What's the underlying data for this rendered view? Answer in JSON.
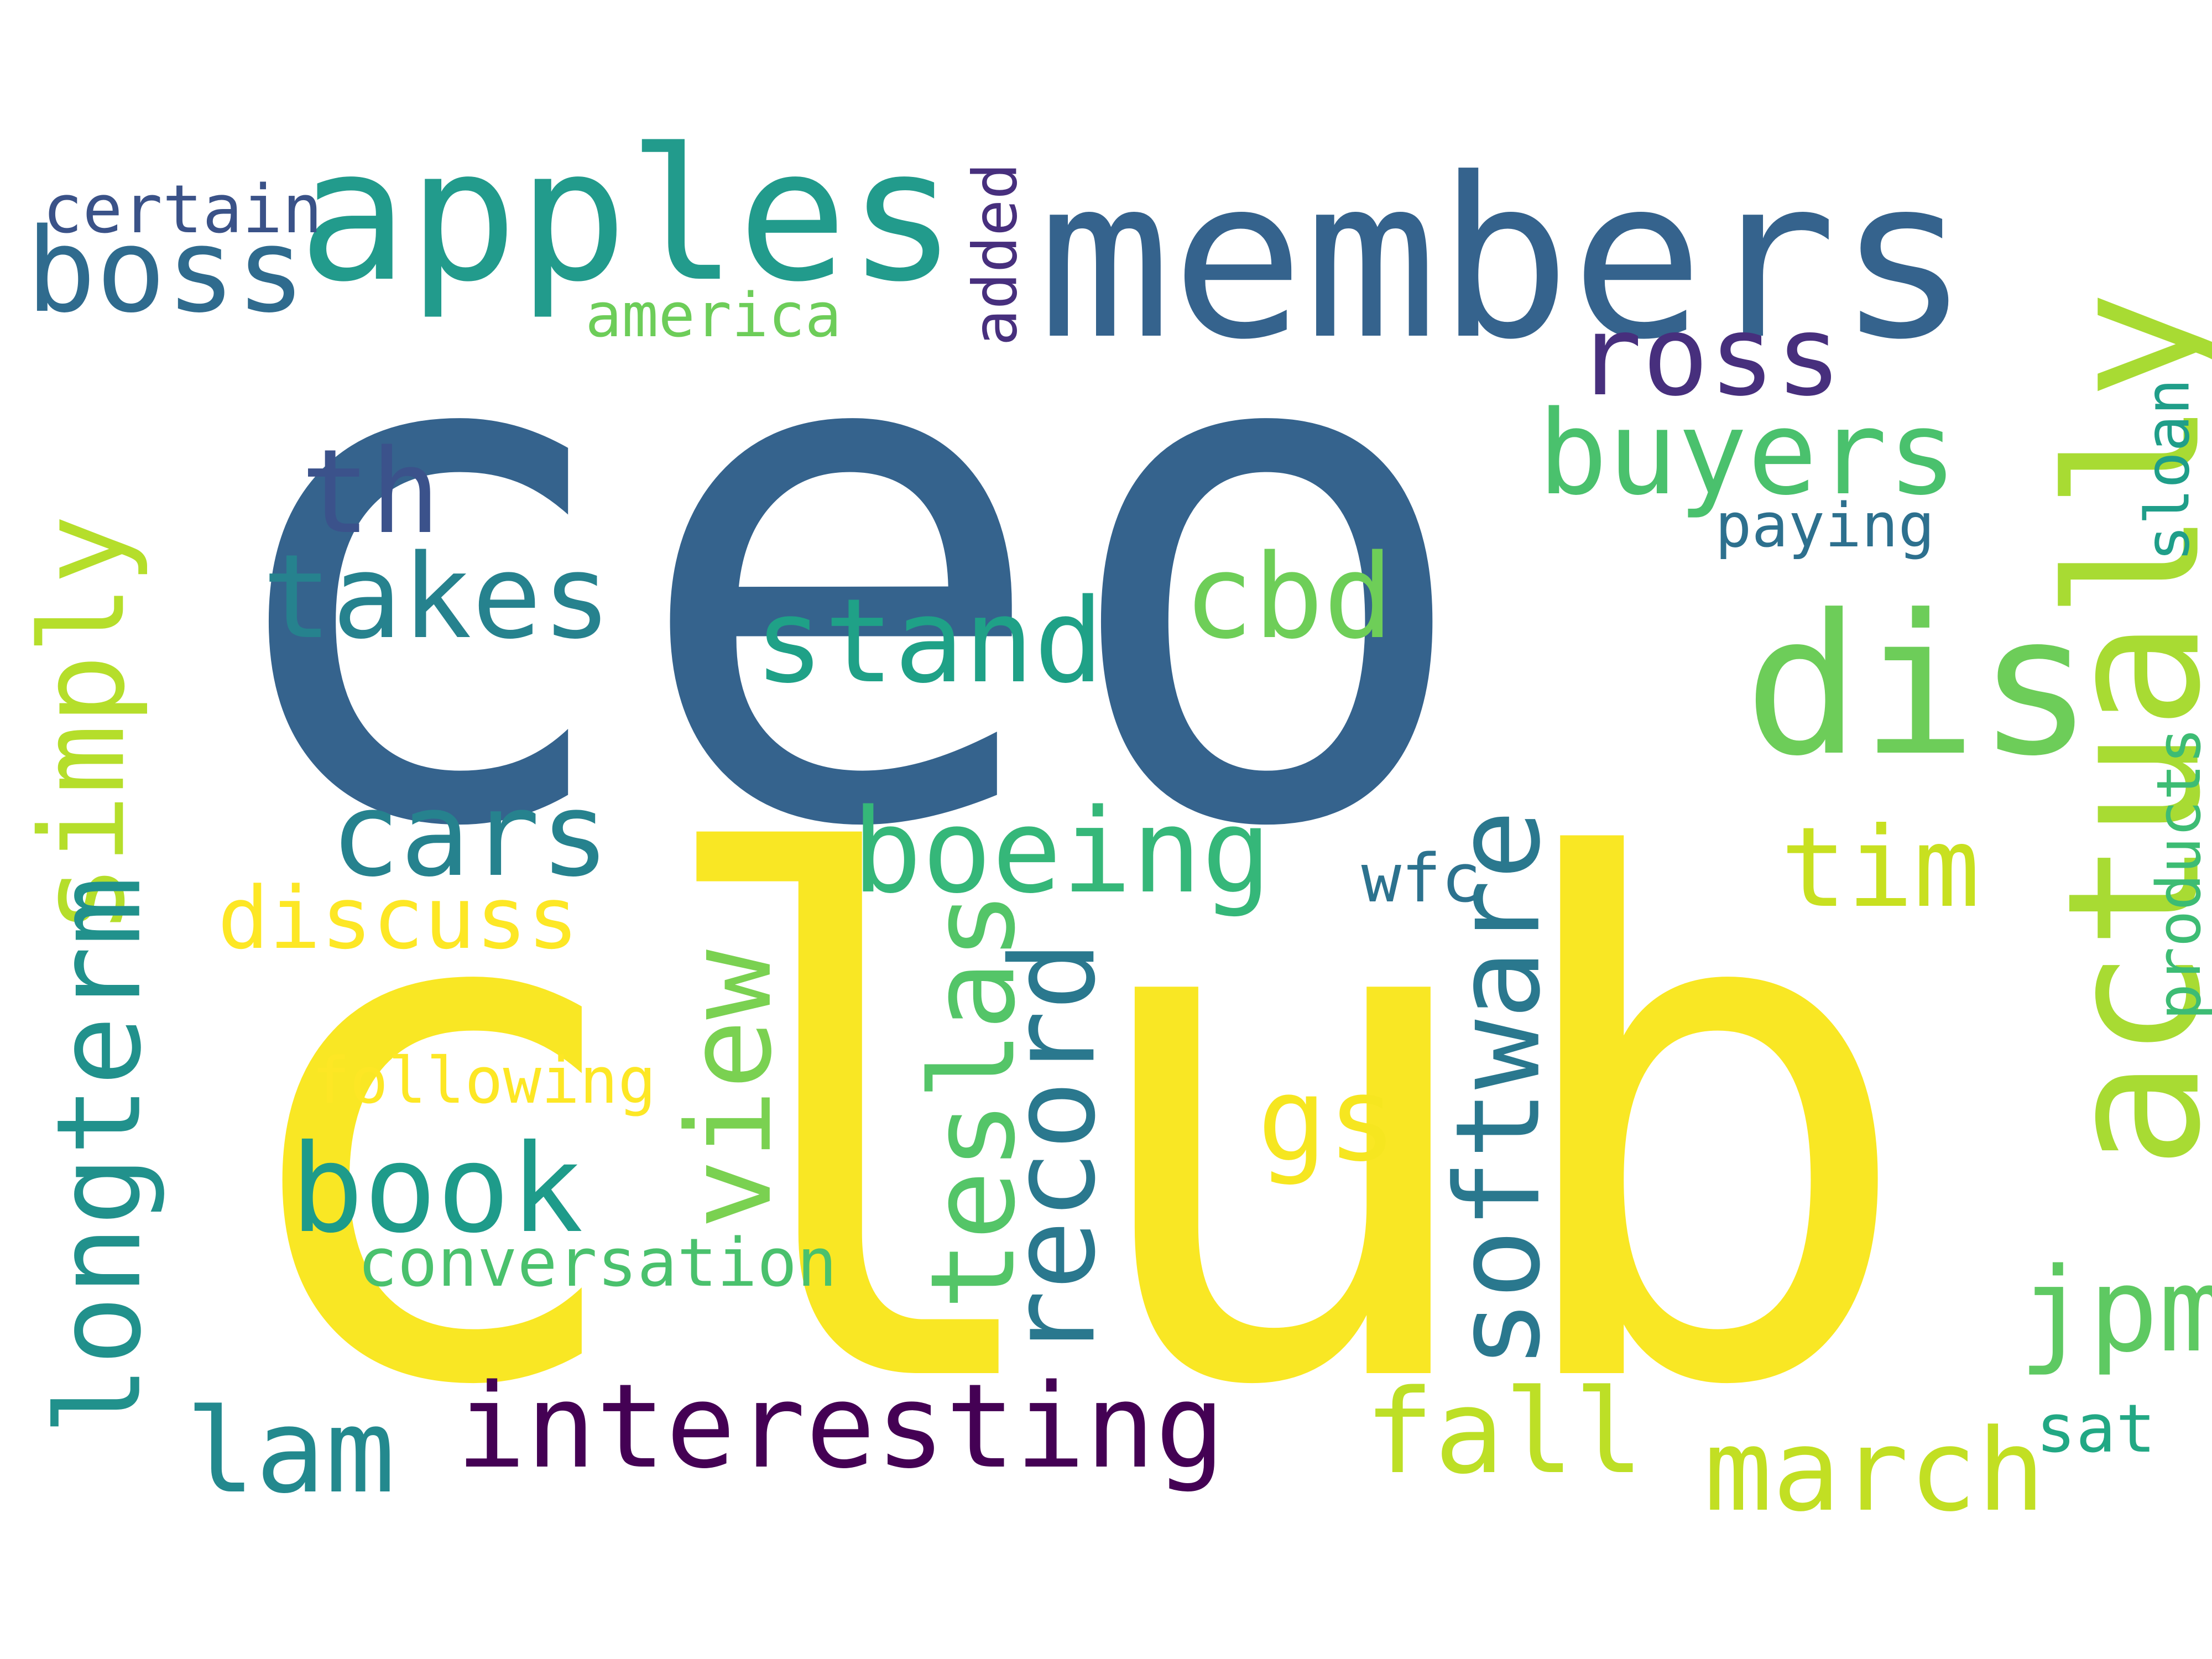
{
  "words": [
    {
      "text": "ceo",
      "color": "#35638d"
    },
    {
      "text": "club",
      "color": "#f9e724"
    },
    {
      "text": "members",
      "color": "#35638d"
    },
    {
      "text": "apples",
      "color": "#229b8c"
    },
    {
      "text": "actually",
      "color": "#a8db33"
    },
    {
      "text": "dis",
      "color": "#6dcd59"
    },
    {
      "text": "boss",
      "color": "#2f6b8e"
    },
    {
      "text": "certain",
      "color": "#3a5288"
    },
    {
      "text": "america",
      "color": "#6dcd59"
    },
    {
      "text": "added",
      "color": "#472f7d"
    },
    {
      "text": "ross",
      "color": "#472f7d"
    },
    {
      "text": "buyers",
      "color": "#4ac16d"
    },
    {
      "text": "sloan",
      "color": "#1f9e89"
    },
    {
      "text": "paying",
      "color": "#2d708e"
    },
    {
      "text": "th",
      "color": "#3b528b"
    },
    {
      "text": "takes",
      "color": "#26828e"
    },
    {
      "text": "cbd",
      "color": "#6ece58"
    },
    {
      "text": "stand",
      "color": "#1fa187"
    },
    {
      "text": "simply",
      "color": "#b5de2b"
    },
    {
      "text": "cars",
      "color": "#26828e"
    },
    {
      "text": "boeing",
      "color": "#35b779"
    },
    {
      "text": "tim",
      "color": "#c8e020"
    },
    {
      "text": "wfc",
      "color": "#2c728e"
    },
    {
      "text": "products",
      "color": "#3dbc74"
    },
    {
      "text": "discuss",
      "color": "#fde725"
    },
    {
      "text": "longterm",
      "color": "#21918c"
    },
    {
      "text": "following",
      "color": "#fde725"
    },
    {
      "text": "view",
      "color": "#7ad151"
    },
    {
      "text": "teslas",
      "color": "#54c568"
    },
    {
      "text": "record",
      "color": "#2a788e"
    },
    {
      "text": "software",
      "color": "#2a788e"
    },
    {
      "text": "gs",
      "color": "#f6e620"
    },
    {
      "text": "book",
      "color": "#1e9b8a"
    },
    {
      "text": "conversation",
      "color": "#4ac16d"
    },
    {
      "text": "jpm",
      "color": "#5ec962"
    },
    {
      "text": "lam",
      "color": "#23898e"
    },
    {
      "text": "interesting",
      "color": "#440154"
    },
    {
      "text": "fall",
      "color": "#bddf26"
    },
    {
      "text": "march",
      "color": "#c2df23"
    },
    {
      "text": "sat",
      "color": "#22a884"
    }
  ]
}
